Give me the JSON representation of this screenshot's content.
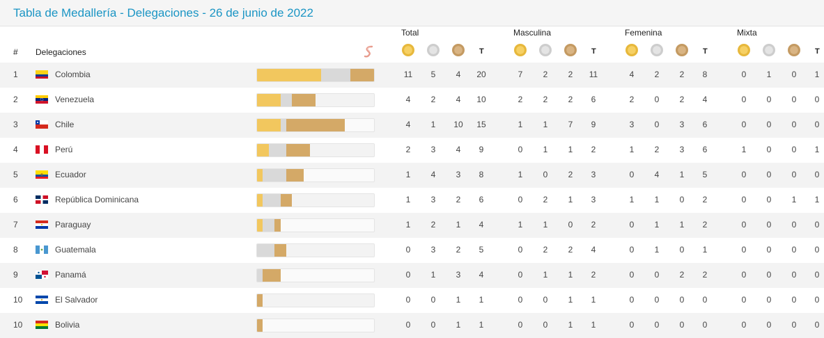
{
  "page": {
    "title": "Tabla de Medallería - Delegaciones - 26 de junio de 2022"
  },
  "header": {
    "hash": "#",
    "delegaciones": "Delegaciones",
    "groups": [
      "Total",
      "Masculina",
      "Femenina",
      "Mixta"
    ],
    "t_label": "T"
  },
  "icons": {
    "brand": "brand-logo-icon",
    "gold": "gold-medal-icon",
    "silver": "silver-medal-icon",
    "bronze": "bronze-medal-icon"
  },
  "colors": {
    "title": "#1b95c4",
    "gold": "#f2c75e",
    "silver": "#d9d9d9",
    "bronze": "#d4a967"
  },
  "rows": [
    {
      "rank": "1",
      "country": "Colombia",
      "flag": "colombia",
      "total": [
        "11",
        "5",
        "4",
        "20"
      ],
      "masculina": [
        "7",
        "2",
        "2",
        "11"
      ],
      "femenina": [
        "4",
        "2",
        "2",
        "8"
      ],
      "mixta": [
        "0",
        "1",
        "0",
        "1"
      ]
    },
    {
      "rank": "2",
      "country": "Venezuela",
      "flag": "venezuela",
      "total": [
        "4",
        "2",
        "4",
        "10"
      ],
      "masculina": [
        "2",
        "2",
        "2",
        "6"
      ],
      "femenina": [
        "2",
        "0",
        "2",
        "4"
      ],
      "mixta": [
        "0",
        "0",
        "0",
        "0"
      ]
    },
    {
      "rank": "3",
      "country": "Chile",
      "flag": "chile",
      "total": [
        "4",
        "1",
        "10",
        "15"
      ],
      "masculina": [
        "1",
        "1",
        "7",
        "9"
      ],
      "femenina": [
        "3",
        "0",
        "3",
        "6"
      ],
      "mixta": [
        "0",
        "0",
        "0",
        "0"
      ]
    },
    {
      "rank": "4",
      "country": "Perú",
      "flag": "peru",
      "total": [
        "2",
        "3",
        "4",
        "9"
      ],
      "masculina": [
        "0",
        "1",
        "1",
        "2"
      ],
      "femenina": [
        "1",
        "2",
        "3",
        "6"
      ],
      "mixta": [
        "1",
        "0",
        "0",
        "1"
      ]
    },
    {
      "rank": "5",
      "country": "Ecuador",
      "flag": "ecuador",
      "total": [
        "1",
        "4",
        "3",
        "8"
      ],
      "masculina": [
        "1",
        "0",
        "2",
        "3"
      ],
      "femenina": [
        "0",
        "4",
        "1",
        "5"
      ],
      "mixta": [
        "0",
        "0",
        "0",
        "0"
      ]
    },
    {
      "rank": "6",
      "country": "República Dominicana",
      "flag": "dominicana",
      "total": [
        "1",
        "3",
        "2",
        "6"
      ],
      "masculina": [
        "0",
        "2",
        "1",
        "3"
      ],
      "femenina": [
        "1",
        "1",
        "0",
        "2"
      ],
      "mixta": [
        "0",
        "0",
        "1",
        "1"
      ]
    },
    {
      "rank": "7",
      "country": "Paraguay",
      "flag": "paraguay",
      "total": [
        "1",
        "2",
        "1",
        "4"
      ],
      "masculina": [
        "1",
        "1",
        "0",
        "2"
      ],
      "femenina": [
        "0",
        "1",
        "1",
        "2"
      ],
      "mixta": [
        "0",
        "0",
        "0",
        "0"
      ]
    },
    {
      "rank": "8",
      "country": "Guatemala",
      "flag": "guatemala",
      "total": [
        "0",
        "3",
        "2",
        "5"
      ],
      "masculina": [
        "0",
        "2",
        "2",
        "4"
      ],
      "femenina": [
        "0",
        "1",
        "0",
        "1"
      ],
      "mixta": [
        "0",
        "0",
        "0",
        "0"
      ]
    },
    {
      "rank": "9",
      "country": "Panamá",
      "flag": "panama",
      "total": [
        "0",
        "1",
        "3",
        "4"
      ],
      "masculina": [
        "0",
        "1",
        "1",
        "2"
      ],
      "femenina": [
        "0",
        "0",
        "2",
        "2"
      ],
      "mixta": [
        "0",
        "0",
        "0",
        "0"
      ]
    },
    {
      "rank": "10",
      "country": "El Salvador",
      "flag": "elsalvador",
      "total": [
        "0",
        "0",
        "1",
        "1"
      ],
      "masculina": [
        "0",
        "0",
        "1",
        "1"
      ],
      "femenina": [
        "0",
        "0",
        "0",
        "0"
      ],
      "mixta": [
        "0",
        "0",
        "0",
        "0"
      ]
    },
    {
      "rank": "10",
      "country": "Bolivia",
      "flag": "bolivia",
      "total": [
        "0",
        "0",
        "1",
        "1"
      ],
      "masculina": [
        "0",
        "0",
        "1",
        "1"
      ],
      "femenina": [
        "0",
        "0",
        "0",
        "0"
      ],
      "mixta": [
        "0",
        "0",
        "0",
        "0"
      ]
    }
  ]
}
